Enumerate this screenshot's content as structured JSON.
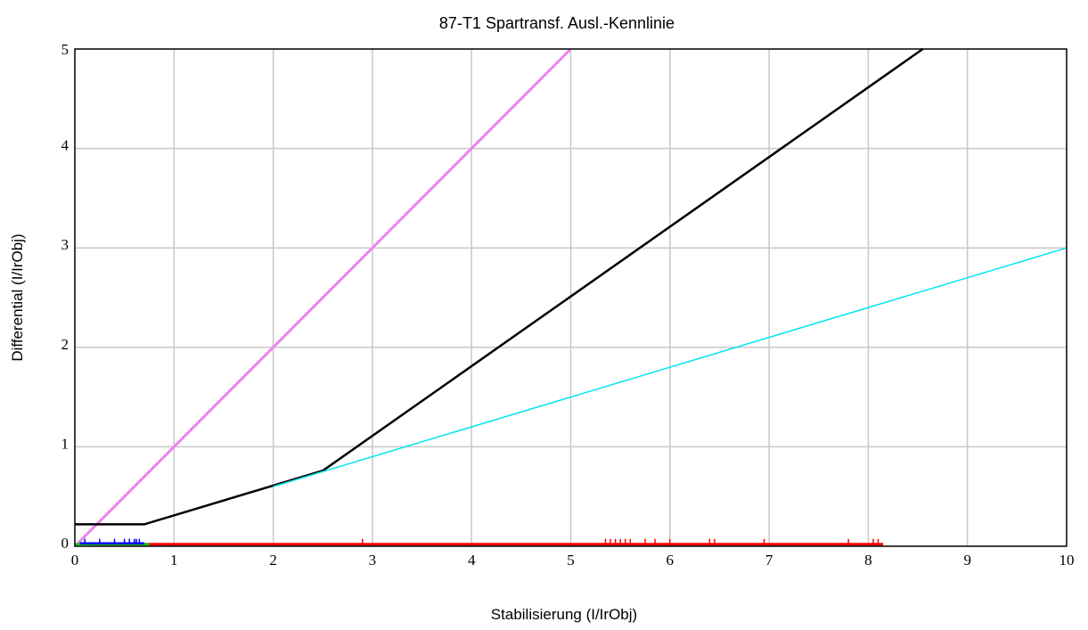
{
  "chart_data": {
    "type": "line",
    "title": "87-T1 Spartransf. Ausl.-Kennlinie",
    "xlabel": "Stabilisierung (I/IrObj)",
    "ylabel": "Differential (I/IrObj)",
    "xlim": [
      0,
      10
    ],
    "ylim": [
      0,
      5
    ],
    "xticks": [
      "0",
      "1",
      "2",
      "3",
      "4",
      "5",
      "6",
      "7",
      "8",
      "9",
      "10"
    ],
    "yticks": [
      "0",
      "1",
      "2",
      "3",
      "4",
      "5"
    ],
    "grid": true,
    "series": [
      {
        "color": "#ee82ee",
        "x": [
          0,
          5
        ],
        "y": [
          0,
          5
        ]
      },
      {
        "color": "#000000",
        "x": [
          0,
          0.7,
          2.5,
          8.55
        ],
        "y": [
          0.22,
          0.22,
          0.76,
          5.0
        ]
      },
      {
        "color": "#00e5ee",
        "x": [
          2.0,
          10
        ],
        "y": [
          0.6,
          3.0
        ]
      },
      {
        "color": "#ff0000",
        "x": [
          0.15,
          8.15
        ],
        "y": [
          0.02,
          0.02
        ]
      },
      {
        "color": "#00cc00",
        "x": [
          0,
          0.75
        ],
        "y": [
          0.02,
          0.02
        ]
      },
      {
        "color": "#0000ff",
        "x": [
          0.05,
          0.7
        ],
        "y": [
          0.03,
          0.03
        ]
      }
    ],
    "red_ticks": [
      2.9,
      5.35,
      5.4,
      5.45,
      5.5,
      5.55,
      5.6,
      5.75,
      5.85,
      6.0,
      6.4,
      6.45,
      6.95,
      7.8,
      8.05,
      8.1
    ],
    "blue_ticks": [
      0.1,
      0.25,
      0.4,
      0.5,
      0.55,
      0.6,
      0.62,
      0.65
    ]
  }
}
